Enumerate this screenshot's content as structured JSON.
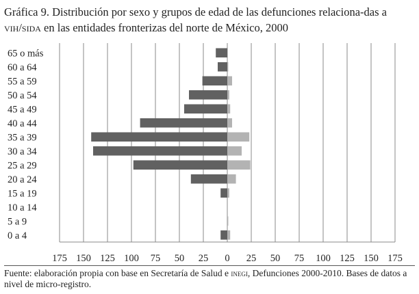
{
  "title": {
    "part1": "Gráfica 9. Distribución por sexo y grupos de edad de las defunciones relaciona-das a ",
    "vih": "vih/sida",
    "part2": " en las entidades fronterizas del norte de México, 2000"
  },
  "source": {
    "part1": "Fuente: elaboración propia con base en Secretaría de Salud e ",
    "inegi": "inegi",
    "part2": ", Defunciones 2000-2010. Bases de datos a nivel de micro-registro."
  },
  "chart_data": {
    "type": "bar",
    "orientation": "horizontal-pyramid",
    "categories": [
      "65 o más",
      "60 a 64",
      "55 a 59",
      "50 a 54",
      "45 a 49",
      "40 a 44",
      "35 a 39",
      "30 a 34",
      "25 a 29",
      "20 a 24",
      "15 a 19",
      "10 a 14",
      "5 a 9",
      "0 a 4"
    ],
    "series": [
      {
        "values": [
          12,
          10,
          26,
          40,
          45,
          91,
          142,
          140,
          98,
          38,
          7,
          0,
          0,
          7
        ],
        "color": "#616161",
        "side": "left"
      },
      {
        "values": [
          0,
          1,
          5,
          2,
          3,
          5,
          23,
          15,
          24,
          9,
          2,
          0,
          1,
          3
        ],
        "color": "#b3b3b3",
        "side": "right"
      }
    ],
    "xlim": [
      -175,
      175
    ],
    "xticks": [
      "175",
      "150",
      "125",
      "100",
      "75",
      "50",
      "25",
      "0",
      "25",
      "50",
      "75",
      "100",
      "125",
      "150",
      "175"
    ],
    "grid": "vertical",
    "legend": "none"
  }
}
